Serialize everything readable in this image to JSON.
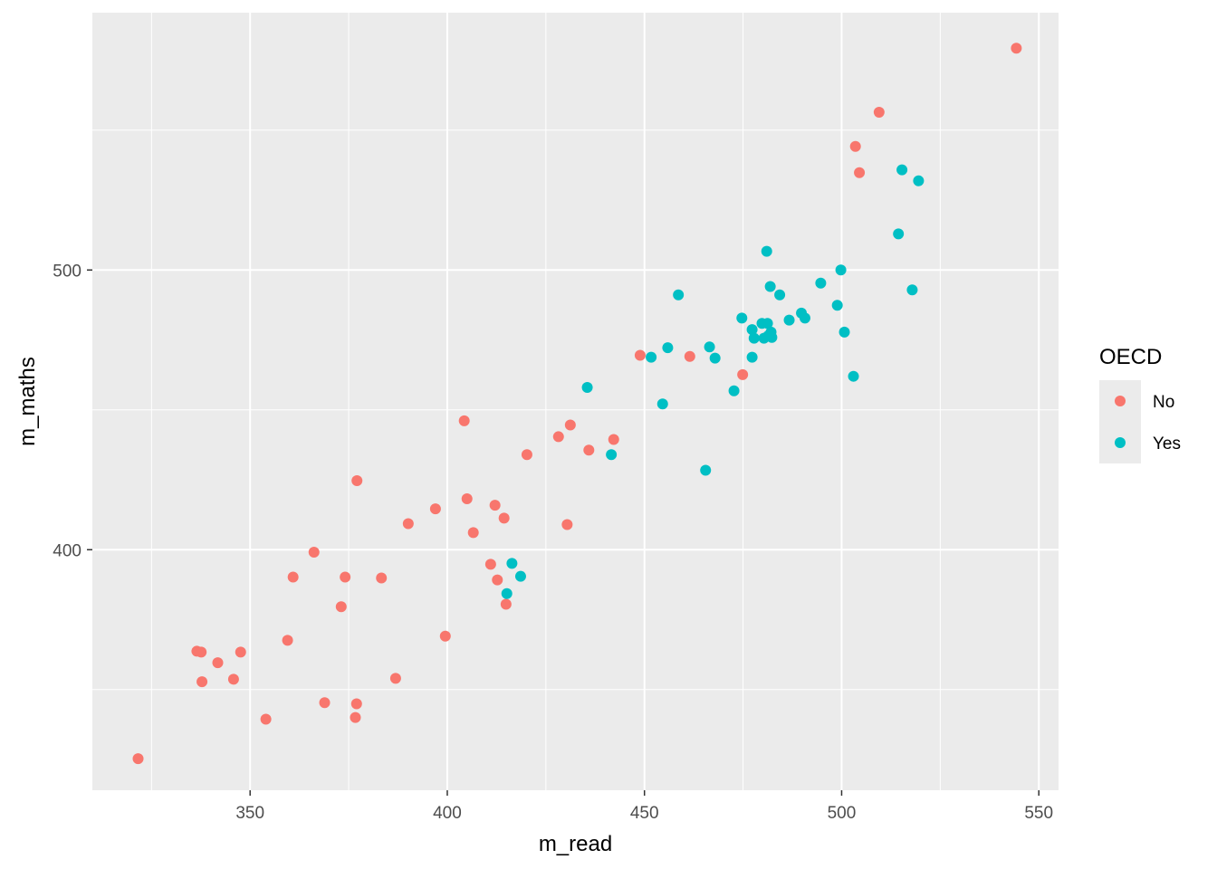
{
  "chart_data": {
    "type": "scatter",
    "xlabel": "m_read",
    "ylabel": "m_maths",
    "xlim": [
      310,
      555
    ],
    "ylim": [
      314,
      592
    ],
    "x_ticks_major": [
      350,
      400,
      450,
      500,
      550
    ],
    "x_ticks_minor": [
      325,
      375,
      425,
      475,
      525
    ],
    "y_ticks_major": [
      400,
      500
    ],
    "y_ticks_minor": [
      350,
      450,
      550
    ],
    "grid": true,
    "legend": {
      "title": "OECD",
      "placement": "right",
      "entries": [
        {
          "label": "No",
          "color": "#F8766D"
        },
        {
          "label": "Yes",
          "color": "#00BFC4"
        }
      ]
    },
    "series": [
      {
        "name": "No",
        "color": "#F8766D",
        "points": [
          [
            544.3,
            579.3
          ],
          [
            509.5,
            556.4
          ],
          [
            503.5,
            544.2
          ],
          [
            504.5,
            534.8
          ],
          [
            448.9,
            469.5
          ],
          [
            461.5,
            469.1
          ],
          [
            474.9,
            462.6
          ],
          [
            404.3,
            446.1
          ],
          [
            431.2,
            444.6
          ],
          [
            428.2,
            440.4
          ],
          [
            442.2,
            439.4
          ],
          [
            435.9,
            435.6
          ],
          [
            420.2,
            434.0
          ],
          [
            377.1,
            424.7
          ],
          [
            405.0,
            418.2
          ],
          [
            412.1,
            415.9
          ],
          [
            397.0,
            414.6
          ],
          [
            414.4,
            411.3
          ],
          [
            390.1,
            409.3
          ],
          [
            430.4,
            409.0
          ],
          [
            406.6,
            406.1
          ],
          [
            366.2,
            399.1
          ],
          [
            411.0,
            394.8
          ],
          [
            360.9,
            390.2
          ],
          [
            374.1,
            390.2
          ],
          [
            383.3,
            389.9
          ],
          [
            412.7,
            389.2
          ],
          [
            373.1,
            379.6
          ],
          [
            414.9,
            380.5
          ],
          [
            399.5,
            369.1
          ],
          [
            359.5,
            367.6
          ],
          [
            336.5,
            363.7
          ],
          [
            337.6,
            363.4
          ],
          [
            347.6,
            363.4
          ],
          [
            341.8,
            359.6
          ],
          [
            345.8,
            353.7
          ],
          [
            337.8,
            352.8
          ],
          [
            386.9,
            354.0
          ],
          [
            368.9,
            345.3
          ],
          [
            377.0,
            344.9
          ],
          [
            354.0,
            339.4
          ],
          [
            376.7,
            340.0
          ],
          [
            321.6,
            325.3
          ]
        ]
      },
      {
        "name": "Yes",
        "color": "#00BFC4",
        "points": [
          [
            515.3,
            535.8
          ],
          [
            519.5,
            531.9
          ],
          [
            514.4,
            512.9
          ],
          [
            481.0,
            506.7
          ],
          [
            499.8,
            500.0
          ],
          [
            494.7,
            495.3
          ],
          [
            481.9,
            494.1
          ],
          [
            517.9,
            492.9
          ],
          [
            458.6,
            491.1
          ],
          [
            484.3,
            491.1
          ],
          [
            498.9,
            487.4
          ],
          [
            489.8,
            484.6
          ],
          [
            474.7,
            482.8
          ],
          [
            490.7,
            482.8
          ],
          [
            486.7,
            482.1
          ],
          [
            479.8,
            480.9
          ],
          [
            481.2,
            480.9
          ],
          [
            477.3,
            478.7
          ],
          [
            482.1,
            477.8
          ],
          [
            500.7,
            477.8
          ],
          [
            477.8,
            475.6
          ],
          [
            480.3,
            475.6
          ],
          [
            482.3,
            475.9
          ],
          [
            481.4,
            476.5
          ],
          [
            466.5,
            472.5
          ],
          [
            455.9,
            472.2
          ],
          [
            451.7,
            468.8
          ],
          [
            467.9,
            468.5
          ],
          [
            477.3,
            468.8
          ],
          [
            435.5,
            458.0
          ],
          [
            472.7,
            456.8
          ],
          [
            503.0,
            462.0
          ],
          [
            454.6,
            452.1
          ],
          [
            441.6,
            434.0
          ],
          [
            465.5,
            428.4
          ],
          [
            416.4,
            395.1
          ],
          [
            418.6,
            390.5
          ],
          [
            415.1,
            384.3
          ]
        ]
      }
    ]
  }
}
